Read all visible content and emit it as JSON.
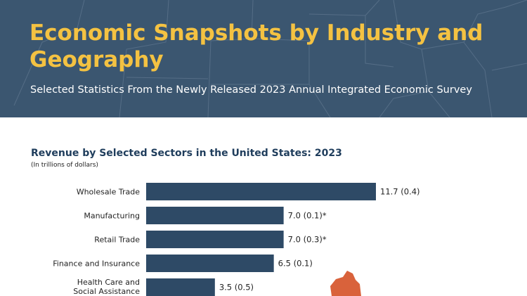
{
  "header": {
    "title": "Economic Snapshots by Industry and Geography",
    "subtitle": "Selected Statistics From the Newly Released 2023 Annual Integrated Economic Survey"
  },
  "colors": {
    "banner": "#3b5670",
    "title": "#f4c242",
    "bar": "#2e4a66",
    "accent_map": "#d9623b"
  },
  "chart_data": {
    "type": "bar",
    "orientation": "horizontal",
    "title": "Revenue by Selected Sectors in the United States: 2023",
    "unit_note": "(In trillions of dollars)",
    "categories": [
      "Wholesale Trade",
      "Manufacturing",
      "Retail Trade",
      "Finance and Insurance",
      "Health Care and Social Assistance"
    ],
    "values": [
      11.7,
      7.0,
      7.0,
      6.5,
      3.5
    ],
    "value_labels": [
      "11.7 (0.4)",
      "7.0 (0.1)*",
      "7.0 (0.3)*",
      "6.5 (0.1)",
      "3.5 (0.5)"
    ],
    "xlim": [
      0,
      12
    ],
    "grid": false,
    "legend": "none"
  }
}
